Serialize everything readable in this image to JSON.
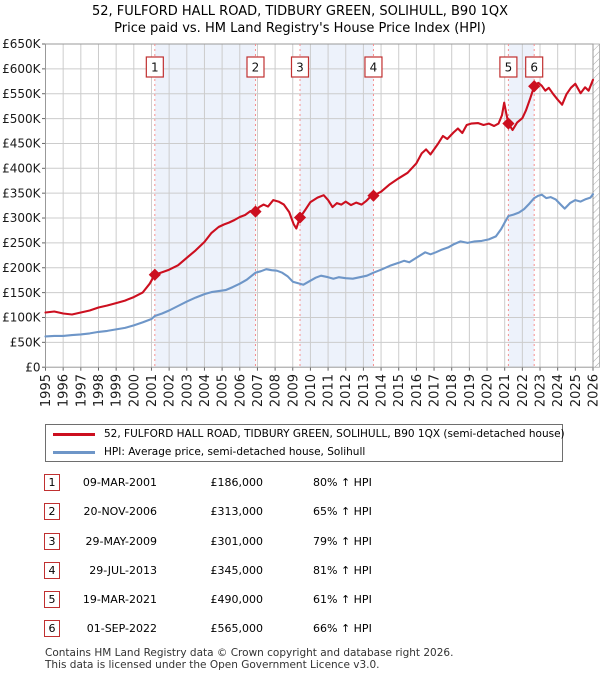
{
  "title": {
    "line1": "52, FULFORD HALL ROAD, TIDBURY GREEN, SOLIHULL, B90 1QX",
    "line2": "Price paid vs. HM Land Registry's House Price Index (HPI)"
  },
  "colors": {
    "price_line": "#cc0f1f",
    "hpi_line": "#6e96c8",
    "sale_dash": "#f59090",
    "band_fill": "#edf2fb",
    "grid": "#cccccc",
    "plot_border": "#999999",
    "flag_border": "#c03030",
    "axis_text": "#1a1a1a",
    "hatch": "#aaaaaa"
  },
  "chart_data": {
    "type": "line",
    "title": "Price paid vs. HM Land Registry's House Price Index (HPI)",
    "xlabel": "",
    "ylabel": "",
    "x_range": [
      1995,
      2026
    ],
    "y_range": [
      0,
      650000
    ],
    "grid": true,
    "y_tick_labels": [
      "£0",
      "£50K",
      "£100K",
      "£150K",
      "£200K",
      "£250K",
      "£300K",
      "£350K",
      "£400K",
      "£450K",
      "£500K",
      "£550K",
      "£600K",
      "£650K"
    ],
    "x_tick_labels": [
      "1995",
      "1996",
      "1997",
      "1998",
      "1999",
      "2000",
      "2001",
      "2002",
      "2003",
      "2004",
      "2005",
      "2006",
      "2007",
      "2008",
      "2009",
      "2010",
      "2011",
      "2012",
      "2013",
      "2014",
      "2015",
      "2016",
      "2017",
      "2018",
      "2019",
      "2020",
      "2021",
      "2022",
      "2023",
      "2024",
      "2025",
      "2026"
    ],
    "bands": [
      [
        2001.19,
        2006.89
      ],
      [
        2009.41,
        2013.57
      ],
      [
        2021.21,
        2022.67
      ]
    ],
    "series": [
      {
        "name": "52, FULFORD HALL ROAD, TIDBURY GREEN, SOLIHULL, B90 1QX (semi-detached house)",
        "color": "#cc0f1f",
        "points": [
          [
            1995.0,
            110000
          ],
          [
            1995.5,
            112000
          ],
          [
            1996.0,
            108000
          ],
          [
            1996.5,
            106000
          ],
          [
            1997.0,
            110000
          ],
          [
            1997.5,
            114000
          ],
          [
            1998.0,
            120000
          ],
          [
            1998.5,
            124000
          ],
          [
            1999.0,
            129000
          ],
          [
            1999.5,
            134000
          ],
          [
            2000.0,
            141000
          ],
          [
            2000.5,
            150000
          ],
          [
            2000.9,
            168000
          ],
          [
            2001.19,
            186000
          ],
          [
            2001.6,
            191000
          ],
          [
            2002.0,
            196000
          ],
          [
            2002.5,
            205000
          ],
          [
            2003.0,
            220000
          ],
          [
            2003.5,
            235000
          ],
          [
            2004.0,
            252000
          ],
          [
            2004.4,
            270000
          ],
          [
            2004.8,
            282000
          ],
          [
            2005.1,
            287000
          ],
          [
            2005.4,
            291000
          ],
          [
            2005.7,
            296000
          ],
          [
            2006.0,
            302000
          ],
          [
            2006.3,
            306000
          ],
          [
            2006.6,
            314000
          ],
          [
            2006.89,
            313000
          ],
          [
            2007.1,
            322000
          ],
          [
            2007.35,
            327000
          ],
          [
            2007.6,
            323000
          ],
          [
            2007.9,
            336000
          ],
          [
            2008.2,
            333000
          ],
          [
            2008.5,
            327000
          ],
          [
            2008.8,
            312000
          ],
          [
            2009.05,
            288000
          ],
          [
            2009.2,
            279000
          ],
          [
            2009.41,
            301000
          ],
          [
            2009.7,
            316000
          ],
          [
            2010.0,
            332000
          ],
          [
            2010.4,
            341000
          ],
          [
            2010.75,
            346000
          ],
          [
            2011.0,
            336000
          ],
          [
            2011.25,
            322000
          ],
          [
            2011.5,
            330000
          ],
          [
            2011.75,
            327000
          ],
          [
            2012.0,
            333000
          ],
          [
            2012.3,
            326000
          ],
          [
            2012.6,
            331000
          ],
          [
            2012.9,
            327000
          ],
          [
            2013.15,
            334000
          ],
          [
            2013.4,
            343000
          ],
          [
            2013.57,
            345000
          ],
          [
            2014.0,
            353000
          ],
          [
            2014.5,
            368000
          ],
          [
            2015.0,
            380000
          ],
          [
            2015.5,
            391000
          ],
          [
            2016.0,
            410000
          ],
          [
            2016.3,
            430000
          ],
          [
            2016.55,
            438000
          ],
          [
            2016.8,
            428000
          ],
          [
            2017.2,
            448000
          ],
          [
            2017.5,
            465000
          ],
          [
            2017.75,
            459000
          ],
          [
            2018.1,
            472000
          ],
          [
            2018.35,
            480000
          ],
          [
            2018.6,
            471000
          ],
          [
            2018.85,
            487000
          ],
          [
            2019.1,
            490000
          ],
          [
            2019.5,
            491000
          ],
          [
            2019.8,
            487000
          ],
          [
            2020.1,
            490000
          ],
          [
            2020.4,
            485000
          ],
          [
            2020.65,
            490000
          ],
          [
            2020.85,
            507000
          ],
          [
            2020.97,
            532000
          ],
          [
            2021.08,
            512000
          ],
          [
            2021.21,
            490000
          ],
          [
            2021.45,
            477000
          ],
          [
            2021.7,
            492000
          ],
          [
            2022.0,
            501000
          ],
          [
            2022.2,
            516000
          ],
          [
            2022.45,
            541000
          ],
          [
            2022.67,
            565000
          ],
          [
            2022.9,
            572000
          ],
          [
            2023.1,
            566000
          ],
          [
            2023.3,
            556000
          ],
          [
            2023.5,
            562000
          ],
          [
            2023.75,
            549000
          ],
          [
            2024.0,
            538000
          ],
          [
            2024.25,
            528000
          ],
          [
            2024.5,
            549000
          ],
          [
            2024.75,
            562000
          ],
          [
            2025.0,
            570000
          ],
          [
            2025.3,
            551000
          ],
          [
            2025.55,
            563000
          ],
          [
            2025.75,
            556000
          ],
          [
            2026.0,
            578000
          ]
        ]
      },
      {
        "name": "HPI: Average price, semi-detached house, Solihull",
        "color": "#6e96c8",
        "points": [
          [
            1995.0,
            62000
          ],
          [
            1995.5,
            63000
          ],
          [
            1996.0,
            63000
          ],
          [
            1996.5,
            64500
          ],
          [
            1997.0,
            66000
          ],
          [
            1997.5,
            68000
          ],
          [
            1998.0,
            71000
          ],
          [
            1998.5,
            73000
          ],
          [
            1999.0,
            76000
          ],
          [
            1999.5,
            79000
          ],
          [
            2000.0,
            84000
          ],
          [
            2000.5,
            90000
          ],
          [
            2001.0,
            97000
          ],
          [
            2001.19,
            103000
          ],
          [
            2001.6,
            108000
          ],
          [
            2002.0,
            114000
          ],
          [
            2002.5,
            123000
          ],
          [
            2003.0,
            132000
          ],
          [
            2003.5,
            140000
          ],
          [
            2004.0,
            147000
          ],
          [
            2004.4,
            151000
          ],
          [
            2004.8,
            153000
          ],
          [
            2005.2,
            155000
          ],
          [
            2005.6,
            161000
          ],
          [
            2006.0,
            168000
          ],
          [
            2006.4,
            176000
          ],
          [
            2006.89,
            190000
          ],
          [
            2007.2,
            193000
          ],
          [
            2007.5,
            197000
          ],
          [
            2007.8,
            195000
          ],
          [
            2008.1,
            194000
          ],
          [
            2008.4,
            190000
          ],
          [
            2008.7,
            183000
          ],
          [
            2009.0,
            172000
          ],
          [
            2009.41,
            168000
          ],
          [
            2009.6,
            166000
          ],
          [
            2010.0,
            174000
          ],
          [
            2010.3,
            180000
          ],
          [
            2010.6,
            184000
          ],
          [
            2011.0,
            181000
          ],
          [
            2011.3,
            178000
          ],
          [
            2011.6,
            181000
          ],
          [
            2012.0,
            179000
          ],
          [
            2012.4,
            178000
          ],
          [
            2012.8,
            181000
          ],
          [
            2013.2,
            184000
          ],
          [
            2013.57,
            190000
          ],
          [
            2014.0,
            196000
          ],
          [
            2014.5,
            204000
          ],
          [
            2015.0,
            210000
          ],
          [
            2015.3,
            214000
          ],
          [
            2015.6,
            211000
          ],
          [
            2016.0,
            220000
          ],
          [
            2016.5,
            231000
          ],
          [
            2016.8,
            227000
          ],
          [
            2017.1,
            231000
          ],
          [
            2017.4,
            236000
          ],
          [
            2017.8,
            241000
          ],
          [
            2018.1,
            247000
          ],
          [
            2018.5,
            253000
          ],
          [
            2018.9,
            250000
          ],
          [
            2019.3,
            253000
          ],
          [
            2019.7,
            254000
          ],
          [
            2020.1,
            257000
          ],
          [
            2020.5,
            263000
          ],
          [
            2020.8,
            278000
          ],
          [
            2021.0,
            291000
          ],
          [
            2021.21,
            304000
          ],
          [
            2021.5,
            307000
          ],
          [
            2021.8,
            311000
          ],
          [
            2022.1,
            318000
          ],
          [
            2022.4,
            329000
          ],
          [
            2022.67,
            340000
          ],
          [
            2022.9,
            345000
          ],
          [
            2023.1,
            347000
          ],
          [
            2023.35,
            340000
          ],
          [
            2023.6,
            342000
          ],
          [
            2023.9,
            337000
          ],
          [
            2024.2,
            326000
          ],
          [
            2024.4,
            319000
          ],
          [
            2024.7,
            330000
          ],
          [
            2025.0,
            336000
          ],
          [
            2025.3,
            333000
          ],
          [
            2025.6,
            338000
          ],
          [
            2025.85,
            341000
          ],
          [
            2026.0,
            348000
          ]
        ]
      }
    ],
    "sales": [
      {
        "num": "1",
        "year": 2001.19,
        "price": 186000
      },
      {
        "num": "2",
        "year": 2006.89,
        "price": 313000
      },
      {
        "num": "3",
        "year": 2009.41,
        "price": 301000
      },
      {
        "num": "4",
        "year": 2013.57,
        "price": 345000
      },
      {
        "num": "5",
        "year": 2021.21,
        "price": 490000
      },
      {
        "num": "6",
        "year": 2022.67,
        "price": 565000
      }
    ]
  },
  "legend": {
    "items": [
      {
        "label": "52, FULFORD HALL ROAD, TIDBURY GREEN, SOLIHULL, B90 1QX (semi-detached house)"
      },
      {
        "label": "HPI: Average price, semi-detached house, Solihull"
      }
    ]
  },
  "table": {
    "rows": [
      {
        "num": "1",
        "date": "09-MAR-2001",
        "price": "£186,000",
        "delta": "80% ↑ HPI"
      },
      {
        "num": "2",
        "date": "20-NOV-2006",
        "price": "£313,000",
        "delta": "65% ↑ HPI"
      },
      {
        "num": "3",
        "date": "29-MAY-2009",
        "price": "£301,000",
        "delta": "79% ↑ HPI"
      },
      {
        "num": "4",
        "date": "29-JUL-2013",
        "price": "£345,000",
        "delta": "81% ↑ HPI"
      },
      {
        "num": "5",
        "date": "19-MAR-2021",
        "price": "£490,000",
        "delta": "61% ↑ HPI"
      },
      {
        "num": "6",
        "date": "01-SEP-2022",
        "price": "£565,000",
        "delta": "66% ↑ HPI"
      }
    ]
  },
  "footer": {
    "line1": "Contains HM Land Registry data © Crown copyright and database right 2026.",
    "line2": "This data is licensed under the Open Government Licence v3.0."
  }
}
